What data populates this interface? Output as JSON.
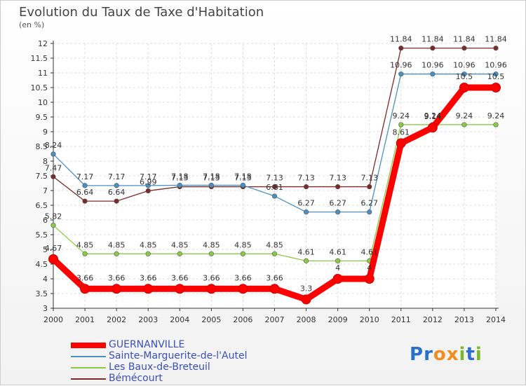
{
  "title": "Evolution du Taux de Taxe d'Habitation",
  "subtitle": "(en %)",
  "logo_text": "Proxiti",
  "chart_data": {
    "type": "line",
    "x": [
      "2000",
      "2001",
      "2002",
      "2003",
      "2004",
      "2005",
      "2006",
      "2007",
      "2008",
      "2009",
      "2010",
      "2011",
      "2012",
      "2013",
      "2014"
    ],
    "ylim": [
      3,
      12
    ],
    "yticks": [
      "3",
      "3.5",
      "4",
      "4.5",
      "5",
      "5.5",
      "6",
      "6.5",
      "7",
      "7.5",
      "8",
      "8.5",
      "9",
      "9.5",
      "10",
      "10.5",
      "11",
      "11.5",
      "12"
    ],
    "grid": true,
    "legend_placement": "bottom-left",
    "series": [
      {
        "name": "GUERNANVILLE",
        "color": "#ff0000",
        "values": [
          4.67,
          3.66,
          3.66,
          3.66,
          3.66,
          3.66,
          3.66,
          3.66,
          3.3,
          4,
          4,
          8.61,
          9.14,
          10.5,
          10.5
        ],
        "labels": [
          "4.67",
          "3.66",
          "3.66",
          "3.66",
          "3.66",
          "3.66",
          "3.66",
          "3.66",
          "3.3",
          "4",
          "4",
          "8.61",
          "9.14",
          "10.5",
          "10.5"
        ]
      },
      {
        "name": "Sainte-Marguerite-de-l'Autel",
        "color": "#4a90c4",
        "values": [
          8.24,
          7.17,
          7.17,
          7.17,
          7.18,
          7.18,
          7.18,
          6.81,
          6.27,
          6.27,
          6.27,
          10.96,
          10.96,
          10.96,
          10.96
        ],
        "labels": [
          "8.24",
          "7.17",
          "7.17",
          "7.17",
          "7.18",
          "7.18",
          "7.18",
          "6.81",
          "6.27",
          "6.27",
          "6.27",
          "10.96",
          "10.96",
          "10.96",
          "10.96"
        ]
      },
      {
        "name": "Les Baux-de-Breteuil",
        "color": "#88cc44",
        "values": [
          5.82,
          4.85,
          4.85,
          4.85,
          4.85,
          4.85,
          4.85,
          4.85,
          4.61,
          4.61,
          4.61,
          9.24,
          9.24,
          9.24,
          9.24
        ],
        "labels": [
          "5.82",
          "4.85",
          "4.85",
          "4.85",
          "4.85",
          "4.85",
          "4.85",
          "4.85",
          "4.61",
          "4.61",
          "4.61",
          "9.24",
          "9.24",
          "9.24",
          "9.24"
        ]
      },
      {
        "name": "Bémécourt",
        "color": "#7b2a2a",
        "values": [
          7.47,
          6.64,
          6.64,
          6.99,
          7.13,
          7.13,
          7.13,
          7.13,
          7.13,
          7.13,
          7.13,
          11.84,
          11.84,
          11.84,
          11.84
        ],
        "labels": [
          "7.47",
          "6.64",
          "6.64",
          "6.99",
          "7.13",
          "7.13",
          "7.13",
          "7.13",
          "7.13",
          "7.13",
          "7.13",
          "11.84",
          "11.84",
          "11.84",
          "11.84"
        ]
      }
    ]
  }
}
